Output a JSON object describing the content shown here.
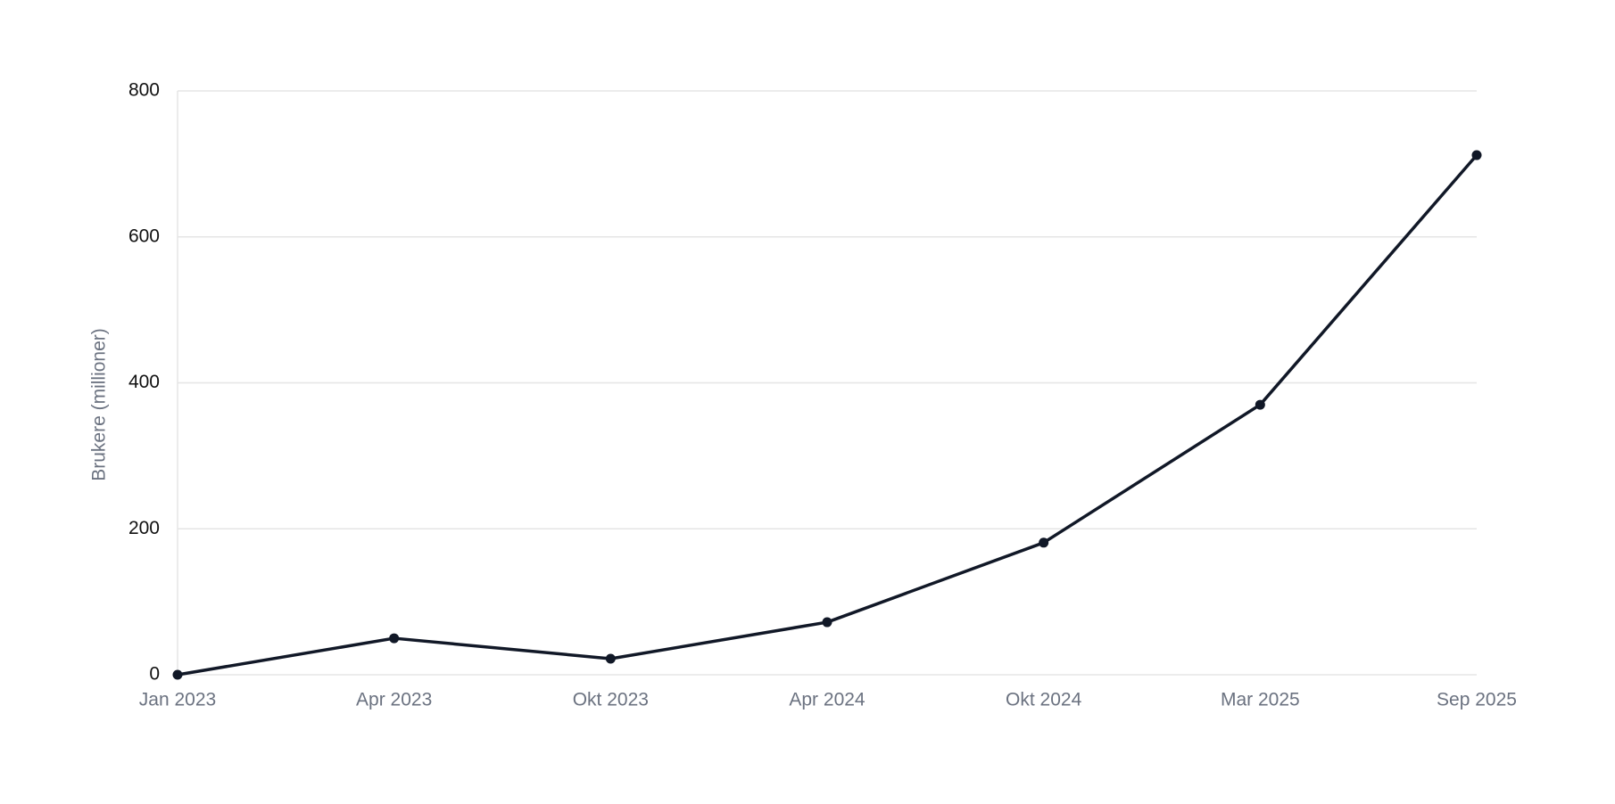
{
  "chart_data": {
    "type": "line",
    "y_label": "Brukere (millioner)",
    "categories": [
      "Jan 2023",
      "Apr 2023",
      "Okt 2023",
      "Apr 2024",
      "Okt 2024",
      "Mar 2025",
      "Sep 2025"
    ],
    "series": [
      {
        "name": "Brukere",
        "color": "#111827",
        "values": [
          0,
          50,
          22,
          72,
          181,
          370,
          712
        ]
      }
    ],
    "ylim": [
      0,
      800
    ],
    "yticks": [
      0,
      200,
      400,
      600,
      800
    ],
    "grid": true
  }
}
